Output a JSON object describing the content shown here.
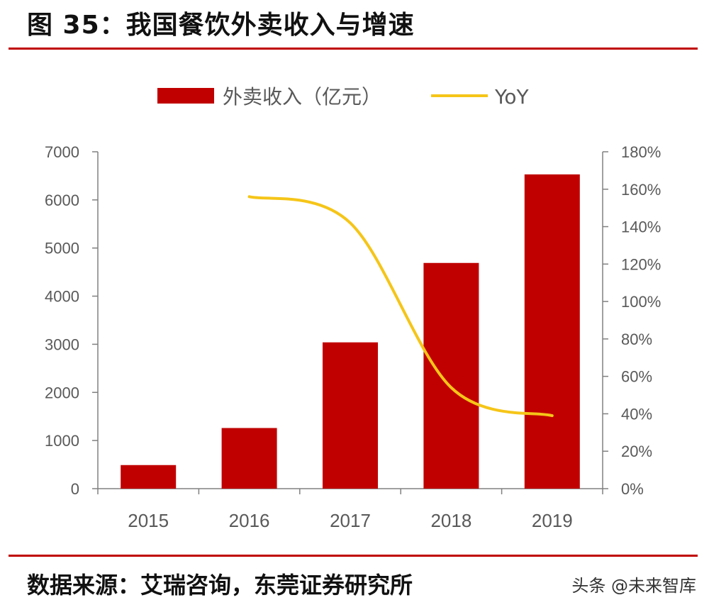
{
  "header": {
    "title": "图 35：我国餐饮外卖收入与增速"
  },
  "footer": {
    "source": "数据来源：艾瑞咨询，东莞证券研究所",
    "watermark": "头条 @未来智库"
  },
  "colors": {
    "bar": "#c00000",
    "line": "#f5c518",
    "axis": "#808080",
    "rule": "#c00000"
  },
  "chart_data": {
    "type": "bar",
    "categories": [
      "2015",
      "2016",
      "2017",
      "2018",
      "2019"
    ],
    "series": [
      {
        "name": "外卖收入（亿元）",
        "type": "bar",
        "axis": "left",
        "values": [
          490,
          1260,
          3040,
          4690,
          6530
        ]
      },
      {
        "name": "YoY",
        "type": "line",
        "axis": "right",
        "values": [
          null,
          1.56,
          1.42,
          0.54,
          0.39
        ]
      }
    ],
    "y_left": {
      "min": 0,
      "max": 7000,
      "ticks": [
        "0",
        "1000",
        "2000",
        "3000",
        "4000",
        "5000",
        "6000",
        "7000"
      ]
    },
    "y_right": {
      "min": 0,
      "max": 1.8,
      "ticks": [
        "0%",
        "20%",
        "40%",
        "60%",
        "80%",
        "100%",
        "120%",
        "140%",
        "160%",
        "180%"
      ]
    },
    "legend_position": "top-center",
    "grid": false
  }
}
